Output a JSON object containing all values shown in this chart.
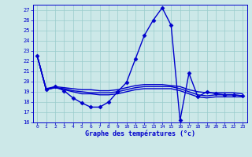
{
  "title": "",
  "xlabel": "Graphe des températures (°c)",
  "ylabel": "",
  "background_color": "#cce8e8",
  "grid_color": "#99cccc",
  "line_color": "#0000cc",
  "ylim": [
    16,
    27.5
  ],
  "xlim": [
    -0.5,
    23.5
  ],
  "yticks": [
    16,
    17,
    18,
    19,
    20,
    21,
    22,
    23,
    24,
    25,
    26,
    27
  ],
  "xticks": [
    0,
    1,
    2,
    3,
    4,
    5,
    6,
    7,
    8,
    9,
    10,
    11,
    12,
    13,
    14,
    15,
    16,
    17,
    18,
    19,
    20,
    21,
    22,
    23
  ],
  "main_series": {
    "x": [
      0,
      1,
      2,
      3,
      4,
      5,
      6,
      7,
      8,
      9,
      10,
      11,
      12,
      13,
      14,
      15,
      16,
      17,
      18,
      19,
      20,
      21,
      22,
      23
    ],
    "y": [
      22.5,
      19.2,
      19.5,
      19.1,
      18.4,
      17.9,
      17.5,
      17.5,
      18.0,
      19.0,
      19.9,
      22.2,
      24.5,
      26.0,
      27.2,
      25.5,
      16.2,
      20.8,
      18.5,
      19.0,
      18.8,
      18.7,
      18.7,
      18.6
    ]
  },
  "smooth_series": [
    {
      "x": [
        0,
        1,
        2,
        3,
        4,
        5,
        6,
        7,
        8,
        9,
        10,
        11,
        12,
        13,
        14,
        15,
        16,
        17,
        18,
        19,
        20,
        21,
        22,
        23
      ],
      "y": [
        22.5,
        19.3,
        19.5,
        19.4,
        19.3,
        19.2,
        19.2,
        19.1,
        19.1,
        19.2,
        19.4,
        19.6,
        19.7,
        19.7,
        19.7,
        19.6,
        19.5,
        19.2,
        19.0,
        18.9,
        18.9,
        18.9,
        18.9,
        18.8
      ]
    },
    {
      "x": [
        0,
        1,
        2,
        3,
        4,
        5,
        6,
        7,
        8,
        9,
        10,
        11,
        12,
        13,
        14,
        15,
        16,
        17,
        18,
        19,
        20,
        21,
        22,
        23
      ],
      "y": [
        22.5,
        19.2,
        19.4,
        19.3,
        19.1,
        19.0,
        18.9,
        18.9,
        18.9,
        19.0,
        19.2,
        19.4,
        19.5,
        19.5,
        19.5,
        19.5,
        19.3,
        19.0,
        18.7,
        18.6,
        18.7,
        18.7,
        18.7,
        18.6
      ]
    },
    {
      "x": [
        0,
        1,
        2,
        3,
        4,
        5,
        6,
        7,
        8,
        9,
        10,
        11,
        12,
        13,
        14,
        15,
        16,
        17,
        18,
        19,
        20,
        21,
        22,
        23
      ],
      "y": [
        22.5,
        19.2,
        19.4,
        19.2,
        19.0,
        18.8,
        18.8,
        18.7,
        18.7,
        18.8,
        19.0,
        19.2,
        19.3,
        19.3,
        19.3,
        19.3,
        19.1,
        18.8,
        18.5,
        18.4,
        18.5,
        18.5,
        18.5,
        18.5
      ]
    }
  ],
  "marker_style": "D",
  "marker_size": 2.5,
  "linewidth": 1.0
}
